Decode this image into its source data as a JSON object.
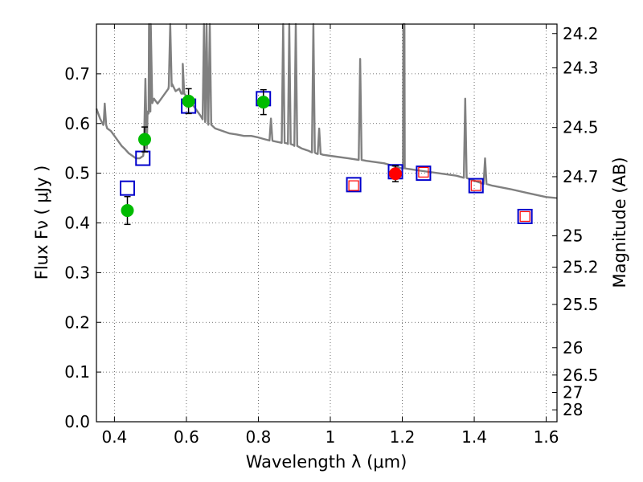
{
  "chart_data": {
    "type": "scatter",
    "title": "",
    "xlabel": "Wavelength  λ (μm)",
    "ylabel": "Flux  Fν  ( μJy )",
    "ylabel_right": "Magnitude (AB)",
    "xlim": [
      0.35,
      1.63
    ],
    "ylim": [
      0.0,
      0.8
    ],
    "grid": true,
    "x_ticks": [
      0.4,
      0.6,
      0.8,
      1.0,
      1.2,
      1.4,
      1.6
    ],
    "x_tick_labels": [
      "0.4",
      "0.6",
      "0.8",
      "1",
      "1.2",
      "1.4",
      "1.6"
    ],
    "y_ticks": [
      0.0,
      0.1,
      0.2,
      0.3,
      0.4,
      0.5,
      0.6,
      0.7
    ],
    "y_tick_labels": [
      "0.0",
      "0.1",
      "0.2",
      "0.3",
      "0.4",
      "0.5",
      "0.6",
      "0.7"
    ],
    "right_ticks": [
      {
        "label": "24.2",
        "flux": 0.781
      },
      {
        "label": "24.3",
        "flux": 0.712
      },
      {
        "label": "24.5",
        "flux": 0.592
      },
      {
        "label": "24.7",
        "flux": 0.493
      },
      {
        "label": "25",
        "flux": 0.374
      },
      {
        "label": "25.2",
        "flux": 0.311
      },
      {
        "label": "25.5",
        "flux": 0.236
      },
      {
        "label": "26",
        "flux": 0.149
      },
      {
        "label": "26.5",
        "flux": 0.094
      },
      {
        "label": "27",
        "flux": 0.059
      },
      {
        "label": "28",
        "flux": 0.024
      }
    ],
    "series": [
      {
        "name": "model spectrum",
        "kind": "line",
        "color": "#808080",
        "x": [
          0.35,
          0.36,
          0.37,
          0.38,
          0.39,
          0.4,
          0.41,
          0.42,
          0.43,
          0.44,
          0.45,
          0.46,
          0.47,
          0.48,
          0.49,
          0.495,
          0.5,
          0.51,
          0.52,
          0.53,
          0.54,
          0.55,
          0.56,
          0.57,
          0.58,
          0.59,
          0.6,
          0.62,
          0.64,
          0.66,
          0.68,
          0.7,
          0.72,
          0.74,
          0.76,
          0.78,
          0.8,
          0.82,
          0.84,
          0.86,
          0.88,
          0.9,
          0.92,
          0.94,
          0.96,
          0.98,
          1.0,
          1.05,
          1.1,
          1.15,
          1.2,
          1.25,
          1.3,
          1.35,
          1.38,
          1.4,
          1.42,
          1.45,
          1.5,
          1.55,
          1.6,
          1.63
        ],
        "y": [
          0.63,
          0.61,
          0.6,
          0.59,
          0.585,
          0.575,
          0.565,
          0.555,
          0.548,
          0.54,
          0.535,
          0.53,
          0.53,
          0.535,
          0.56,
          0.62,
          0.64,
          0.65,
          0.64,
          0.65,
          0.66,
          0.67,
          0.68,
          0.665,
          0.67,
          0.66,
          0.655,
          0.635,
          0.615,
          0.6,
          0.59,
          0.585,
          0.58,
          0.578,
          0.575,
          0.575,
          0.572,
          0.568,
          0.565,
          0.562,
          0.56,
          0.556,
          0.55,
          0.545,
          0.54,
          0.537,
          0.535,
          0.53,
          0.525,
          0.52,
          0.51,
          0.505,
          0.5,
          0.495,
          0.49,
          0.485,
          0.48,
          0.475,
          0.468,
          0.46,
          0.452,
          0.45
        ],
        "emission_lines": [
          {
            "x": 0.373,
            "peak": 0.64
          },
          {
            "x": 0.486,
            "peak": 0.69
          },
          {
            "x": 0.496,
            "peak": 0.82
          },
          {
            "x": 0.501,
            "peak": 0.82
          },
          {
            "x": 0.555,
            "peak": 0.82
          },
          {
            "x": 0.59,
            "peak": 0.72
          },
          {
            "x": 0.649,
            "peak": 0.82
          },
          {
            "x": 0.656,
            "peak": 0.82
          },
          {
            "x": 0.665,
            "peak": 0.82
          },
          {
            "x": 0.835,
            "peak": 0.61
          },
          {
            "x": 0.869,
            "peak": 0.82
          },
          {
            "x": 0.886,
            "peak": 0.82
          },
          {
            "x": 0.904,
            "peak": 0.82
          },
          {
            "x": 0.953,
            "peak": 0.82
          },
          {
            "x": 0.969,
            "peak": 0.59
          },
          {
            "x": 1.083,
            "peak": 0.73
          },
          {
            "x": 1.203,
            "peak": 0.82
          },
          {
            "x": 1.206,
            "peak": 0.82
          },
          {
            "x": 1.375,
            "peak": 0.65
          },
          {
            "x": 1.43,
            "peak": 0.53
          }
        ]
      },
      {
        "name": "model photometry (blue squares)",
        "kind": "square",
        "color": "#0000cc",
        "x": [
          0.436,
          0.479,
          0.606,
          0.814,
          1.065,
          1.181,
          1.259,
          1.405,
          1.541
        ],
        "y": [
          0.47,
          0.53,
          0.635,
          0.65,
          0.477,
          0.503,
          0.5,
          0.475,
          0.413
        ]
      },
      {
        "name": "measured (open red squares)",
        "kind": "open-square",
        "color": "#ff0000",
        "x": [
          1.065,
          1.259,
          1.405,
          1.541
        ],
        "y": [
          0.475,
          0.502,
          0.475,
          0.413
        ]
      },
      {
        "name": "measured (green circles)",
        "kind": "circle",
        "color": "#00bb00",
        "x": [
          0.436,
          0.484,
          0.606,
          0.814
        ],
        "y": [
          0.425,
          0.568,
          0.645,
          0.643
        ],
        "yerr": [
          0.028,
          0.025,
          0.025,
          0.025
        ]
      },
      {
        "name": "measured (red circle)",
        "kind": "circle",
        "color": "#ff0000",
        "x": [
          1.181
        ],
        "y": [
          0.499
        ],
        "yerr": [
          0.016
        ]
      }
    ]
  }
}
